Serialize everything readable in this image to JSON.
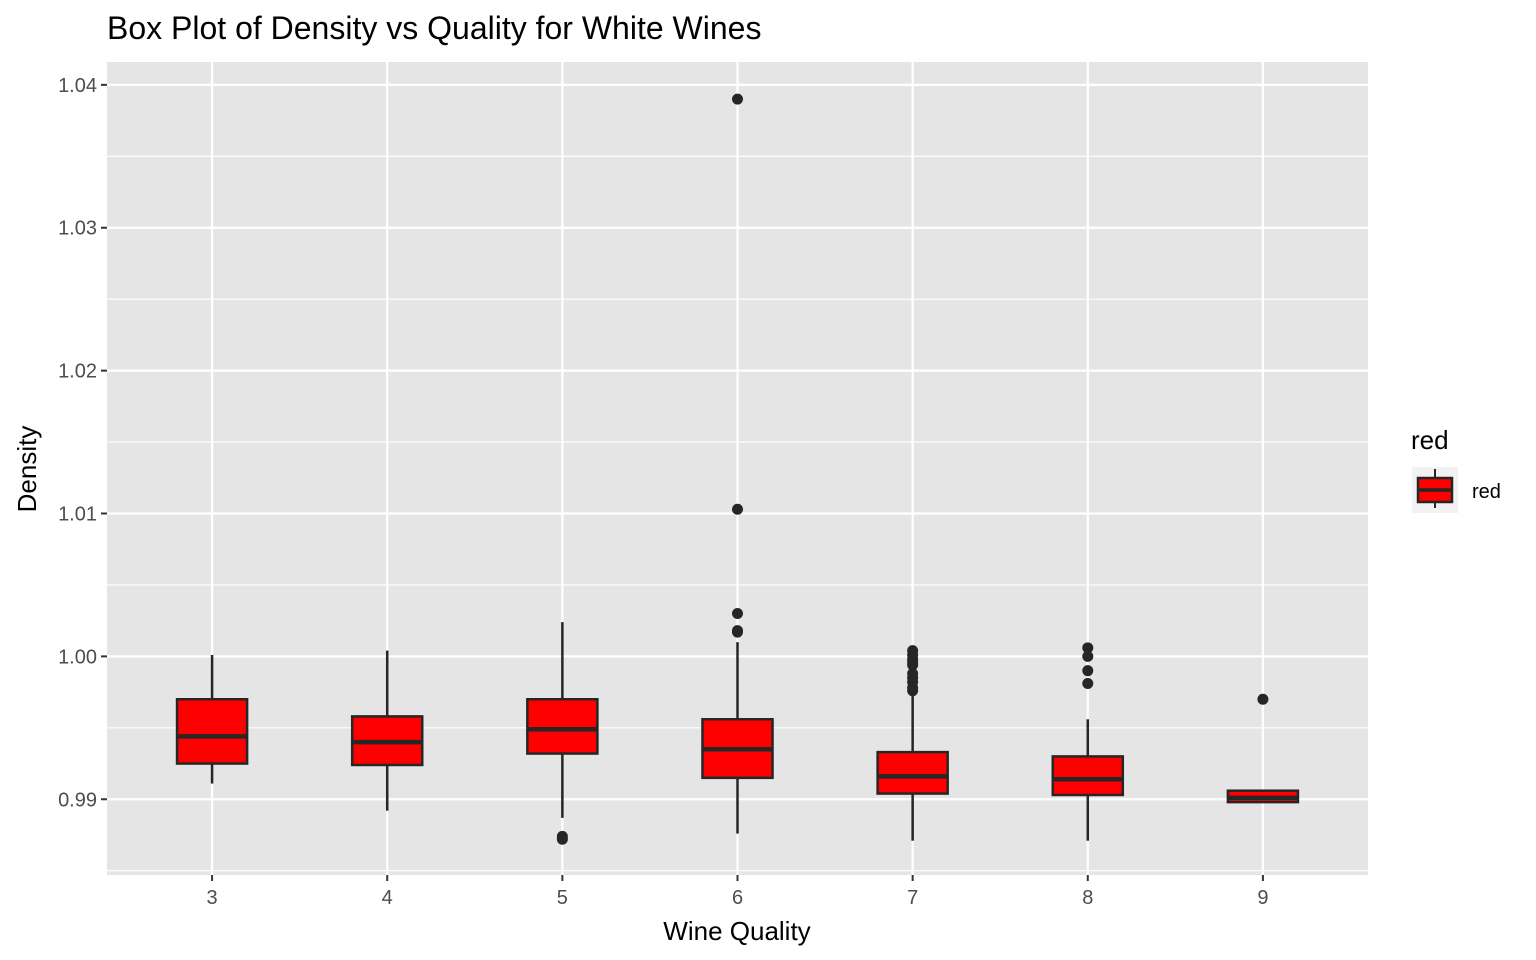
{
  "chart_data": {
    "type": "box",
    "title": "Box Plot of Density vs Quality for White Wines",
    "xlabel": "Wine Quality",
    "ylabel": "Density",
    "ylim": [
      0.9847,
      1.0416
    ],
    "y_ticks": [
      0.99,
      1.0,
      1.01,
      1.02,
      1.03,
      1.04
    ],
    "y_tick_labels": [
      "0.99",
      "1.00",
      "1.01",
      "1.02",
      "1.03",
      "1.04"
    ],
    "grid": true,
    "legend": {
      "title": "red",
      "label": "red",
      "placement": "right"
    },
    "fill_color": "#FF0000",
    "line_color": "#262626",
    "panel_color": "#E5E5E5",
    "categories": [
      "3",
      "4",
      "5",
      "6",
      "7",
      "8",
      "9"
    ],
    "boxes": [
      {
        "quality": "3",
        "whisker_low": 0.9911,
        "q1": 0.9925,
        "median": 0.9944,
        "q3": 0.997,
        "whisker_high": 1.0001,
        "outliers": []
      },
      {
        "quality": "4",
        "whisker_low": 0.9892,
        "q1": 0.9924,
        "median": 0.994,
        "q3": 0.9958,
        "whisker_high": 1.0004,
        "outliers": []
      },
      {
        "quality": "5",
        "whisker_low": 0.9887,
        "q1": 0.9932,
        "median": 0.9949,
        "q3": 0.997,
        "whisker_high": 1.0024,
        "outliers": [
          0.9872,
          0.9874
        ]
      },
      {
        "quality": "6",
        "whisker_low": 0.9876,
        "q1": 0.9915,
        "median": 0.9935,
        "q3": 0.9956,
        "whisker_high": 1.001,
        "outliers": [
          1.039,
          1.0103,
          1.003,
          1.0017,
          1.0018
        ]
      },
      {
        "quality": "7",
        "whisker_low": 0.9871,
        "q1": 0.9904,
        "median": 0.9916,
        "q3": 0.9933,
        "whisker_high": 0.9974,
        "outliers": [
          0.9976,
          0.9978,
          0.9982,
          0.9985,
          0.9988,
          0.9994,
          0.9996,
          0.9998,
          1.0001,
          1.0004
        ]
      },
      {
        "quality": "8",
        "whisker_low": 0.9871,
        "q1": 0.9903,
        "median": 0.9914,
        "q3": 0.993,
        "whisker_high": 0.9956,
        "outliers": [
          0.9981,
          0.999,
          1.0,
          1.0006
        ]
      },
      {
        "quality": "9",
        "whisker_low": 0.9898,
        "q1": 0.9898,
        "median": 0.9901,
        "q3": 0.9906,
        "whisker_high": 0.9906,
        "outliers": [
          0.997
        ]
      }
    ]
  }
}
